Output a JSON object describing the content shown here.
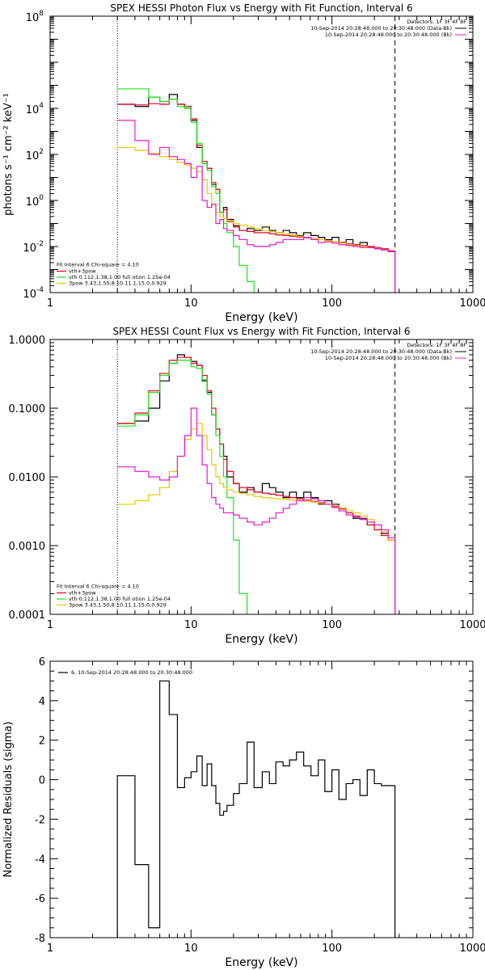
{
  "chart_data": [
    {
      "type": "line",
      "title": "SPEX HESSI Photon Flux vs Energy with Fit Function, Interval 6",
      "xlabel": "Energy (keV)",
      "ylabel": "photons s⁻¹ cm⁻² keV⁻¹",
      "xscale": "log",
      "yscale": "log",
      "xlim": [
        1,
        1000
      ],
      "ylim": [
        0.0001,
        100000000
      ],
      "x_ticks": [
        1,
        10,
        100,
        1000
      ],
      "x_tick_labels": [
        "1",
        "10",
        "100",
        "1000"
      ],
      "y_ticks": [
        0.0001,
        0.01,
        1,
        100,
        10000,
        100000000
      ],
      "y_tick_labels": [
        {
          "base": "10",
          "exp": "-4"
        },
        {
          "base": "10",
          "exp": "-2"
        },
        {
          "base": "10",
          "exp": "0"
        },
        {
          "base": "10",
          "exp": "2"
        },
        {
          "base": "10",
          "exp": "4"
        },
        {
          "base": "10",
          "exp": "8"
        }
      ],
      "grid": false,
      "legend_top_right": [
        "Detectors: 1F 3F 4F 8F",
        "10-Sep-2014 20:28:48.000 to 20:30:48.000 (Data-Bk)",
        "10-Sep-2014 20:28:48.000 to 20:30:48.000 (Bk)"
      ],
      "legend_bottom_left": {
        "header": "Fit Interval  6   Chi-square = 4.10",
        "entries": [
          {
            "label": "vth+3pow",
            "color": "#e8001c"
          },
          {
            "label": "vth 0.112,1.38,1.00  full otion 1.25e-04",
            "color": "#18e818"
          },
          {
            "label": "3pow 3.43,1.50,8.10,11.1,15.0,0.929",
            "color": "#e8c800"
          }
        ]
      },
      "vlines_keV": {
        "dotted": 3.0,
        "dashed": 280
      },
      "series": [
        {
          "color": "#000000",
          "edges": [
            3,
            4,
            5,
            6,
            7,
            8,
            9,
            10,
            11,
            12,
            13,
            14,
            15,
            16,
            17,
            18,
            20,
            22,
            25,
            28,
            32,
            36,
            40,
            45,
            50,
            56,
            63,
            71,
            80,
            89,
            100,
            112,
            126,
            141,
            158,
            178,
            200,
            224,
            251,
            280
          ],
          "values": [
            15000,
            12000,
            30000,
            20000,
            40000,
            15000,
            10000,
            3000,
            200,
            40,
            25,
            5,
            3,
            0.3,
            0.5,
            0.15,
            0.08,
            0.05,
            0.06,
            0.05,
            0.07,
            0.05,
            0.04,
            0.05,
            0.04,
            0.03,
            0.04,
            0.03,
            0.025,
            0.02,
            0.025,
            0.015,
            0.02,
            0.012,
            0.015,
            0.01,
            0.008,
            0.007,
            0.006
          ]
        },
        {
          "color": "#e8001c",
          "edges": [
            3,
            4,
            5,
            6,
            7,
            8,
            9,
            10,
            11,
            12,
            13,
            14,
            15,
            16,
            17,
            18,
            20,
            22,
            25,
            28,
            32,
            36,
            40,
            45,
            50,
            56,
            63,
            71,
            80,
            89,
            100,
            112,
            126,
            141,
            158,
            178,
            200,
            224,
            251,
            280
          ],
          "values": [
            15000,
            14000,
            16000,
            15000,
            25000,
            15000,
            12000,
            3500,
            250,
            50,
            25,
            6,
            3,
            0.3,
            0.4,
            0.12,
            0.07,
            0.05,
            0.045,
            0.04,
            0.04,
            0.036,
            0.032,
            0.03,
            0.028,
            0.026,
            0.024,
            0.022,
            0.02,
            0.018,
            0.016,
            0.015,
            0.013,
            0.012,
            0.011,
            0.01,
            0.009,
            0.008,
            0.0065
          ]
        },
        {
          "color": "#18e818",
          "edges": [
            3,
            4,
            5,
            6,
            7,
            8,
            9,
            10,
            11,
            12,
            13,
            14,
            15,
            16,
            17,
            18,
            20,
            22,
            25,
            28
          ],
          "values": [
            70000,
            70000,
            30000,
            20000,
            25000,
            12000,
            10000,
            2500,
            300,
            40,
            20,
            4,
            2,
            0.3,
            0.1,
            0.04,
            0.01,
            0.0015,
            0.0003
          ]
        },
        {
          "color": "#e8c800",
          "edges": [
            3,
            4,
            5,
            6,
            7,
            8,
            9,
            10,
            11,
            12,
            13,
            14,
            15,
            16,
            17,
            18,
            20,
            22,
            25,
            28,
            32,
            36,
            40,
            45,
            50,
            56,
            63,
            71,
            80,
            89,
            100,
            112,
            126,
            141,
            158,
            178,
            200,
            224,
            251,
            280
          ],
          "values": [
            200,
            150,
            110,
            80,
            60,
            45,
            35,
            25,
            18,
            8,
            2,
            0.6,
            0.3,
            0.2,
            0.16,
            0.13,
            0.1,
            0.085,
            0.07,
            0.06,
            0.05,
            0.045,
            0.04,
            0.035,
            0.032,
            0.028,
            0.025,
            0.022,
            0.02,
            0.018,
            0.016,
            0.014,
            0.012,
            0.011,
            0.01,
            0.009,
            0.008,
            0.007,
            0.006
          ]
        },
        {
          "color": "#e818d0",
          "edges": [
            3,
            4,
            5,
            6,
            7,
            8,
            9,
            10,
            11,
            12,
            13,
            14,
            15,
            16,
            17,
            18,
            20,
            22,
            25,
            28,
            32,
            36,
            40,
            45,
            50,
            56,
            63,
            71,
            80,
            89,
            100,
            112,
            126,
            141,
            158,
            178,
            200,
            224,
            251,
            280
          ],
          "values": [
            3000,
            400,
            100,
            200,
            80,
            60,
            40,
            10,
            30,
            1,
            0.5,
            0.7,
            0.1,
            0.15,
            0.06,
            0.05,
            0.03,
            0.02,
            0.012,
            0.01,
            0.01,
            0.012,
            0.015,
            0.02,
            0.02,
            0.02,
            0.025,
            0.02,
            0.015,
            0.016,
            0.014,
            0.012,
            0.011,
            0.01,
            0.009,
            0.009,
            0.008,
            0.007,
            0.006
          ]
        }
      ]
    },
    {
      "type": "line",
      "title": "SPEX HESSI Count Flux vs Energy with Fit Function, Interval 6",
      "xlabel": "Energy (keV)",
      "ylabel": "",
      "xscale": "log",
      "yscale": "log",
      "xlim": [
        1,
        1000
      ],
      "ylim": [
        0.0001,
        1.0
      ],
      "x_ticks": [
        1,
        10,
        100,
        1000
      ],
      "x_tick_labels": [
        "1",
        "10",
        "100",
        "1000"
      ],
      "y_ticks": [
        0.0001,
        0.001,
        0.01,
        0.1,
        1.0
      ],
      "y_tick_labels": [
        "0.0001",
        "0.0010",
        "0.0100",
        "0.1000",
        "1.0000"
      ],
      "grid": false,
      "legend_top_right": [
        "Detectors: 1F 3F 4F 8F",
        "10-Sep-2014 20:28:48.000 to 20:30:48.000 (Data-Bk)",
        "10-Sep-2014 20:28:48.000 to 20:30:48.000 (Bk)"
      ],
      "legend_bottom_left": {
        "header": "Fit Interval  6   Chi-square = 4.10",
        "entries": [
          {
            "label": "vth+3pow",
            "color": "#e8001c"
          },
          {
            "label": "vth 0.112,1.38,1.00  full otion 1.25e-04",
            "color": "#18e818"
          },
          {
            "label": "3pow 3.43,1.50,8.10,11.1,15.0,0.929",
            "color": "#e8c800"
          }
        ]
      },
      "vlines_keV": {
        "dotted": 3.0,
        "dashed": 280
      },
      "series": [
        {
          "color": "#000000",
          "edges": [
            3,
            4,
            5,
            6,
            7,
            8,
            9,
            10,
            11,
            12,
            13,
            14,
            15,
            16,
            17,
            18,
            20,
            22,
            25,
            28,
            32,
            36,
            40,
            45,
            50,
            56,
            63,
            71,
            80,
            89,
            100,
            112,
            126,
            141,
            158,
            178,
            200,
            224,
            251,
            280
          ],
          "values": [
            0.06,
            0.065,
            0.1,
            0.25,
            0.45,
            0.6,
            0.55,
            0.48,
            0.42,
            0.25,
            0.17,
            0.08,
            0.05,
            0.03,
            0.02,
            0.01,
            0.008,
            0.006,
            0.007,
            0.006,
            0.008,
            0.007,
            0.006,
            0.005,
            0.006,
            0.005,
            0.006,
            0.005,
            0.004,
            0.0045,
            0.004,
            0.0035,
            0.003,
            0.0025,
            0.0025,
            0.002,
            0.002,
            0.0015,
            0.0012
          ]
        },
        {
          "color": "#e8001c",
          "edges": [
            3,
            4,
            5,
            6,
            7,
            8,
            9,
            10,
            11,
            12,
            13,
            14,
            15,
            16,
            17,
            18,
            20,
            22,
            25,
            28,
            32,
            36,
            40,
            45,
            50,
            56,
            63,
            71,
            80,
            89,
            100,
            112,
            126,
            141,
            158,
            178,
            200,
            224,
            251,
            280
          ],
          "values": [
            0.06,
            0.085,
            0.18,
            0.32,
            0.5,
            0.55,
            0.55,
            0.45,
            0.42,
            0.3,
            0.18,
            0.1,
            0.05,
            0.03,
            0.018,
            0.012,
            0.008,
            0.007,
            0.0065,
            0.006,
            0.0058,
            0.0056,
            0.0054,
            0.0052,
            0.005,
            0.0048,
            0.0046,
            0.0044,
            0.0042,
            0.004,
            0.0037,
            0.0034,
            0.003,
            0.0027,
            0.0024,
            0.002,
            0.0017,
            0.0014,
            0.0012
          ]
        },
        {
          "color": "#18e818",
          "edges": [
            3,
            4,
            5,
            6,
            7,
            8,
            9,
            10,
            11,
            12,
            13,
            14,
            15,
            16,
            17,
            18,
            20,
            22,
            25,
            28
          ],
          "values": [
            0.055,
            0.08,
            0.17,
            0.3,
            0.45,
            0.5,
            0.5,
            0.4,
            0.38,
            0.26,
            0.16,
            0.08,
            0.04,
            0.02,
            0.01,
            0.005,
            0.0012,
            0.0002,
            5e-05
          ]
        },
        {
          "color": "#e8c800",
          "edges": [
            3,
            4,
            5,
            6,
            7,
            8,
            9,
            10,
            11,
            12,
            13,
            14,
            15,
            16,
            17,
            18,
            20,
            22,
            25,
            28,
            32,
            36,
            40,
            45,
            50,
            56,
            63,
            71,
            80,
            89,
            100,
            112,
            126,
            141,
            158,
            178,
            200,
            224,
            251,
            280
          ],
          "values": [
            0.004,
            0.0045,
            0.0055,
            0.007,
            0.012,
            0.02,
            0.035,
            0.05,
            0.06,
            0.04,
            0.025,
            0.015,
            0.01,
            0.008,
            0.007,
            0.0065,
            0.006,
            0.0058,
            0.0055,
            0.0052,
            0.005,
            0.0049,
            0.0048,
            0.0047,
            0.0046,
            0.0045,
            0.0044,
            0.0043,
            0.0041,
            0.004,
            0.0038,
            0.0035,
            0.0032,
            0.003,
            0.0027,
            0.0024,
            0.002,
            0.0016,
            0.0012
          ]
        },
        {
          "color": "#e818d0",
          "edges": [
            3,
            4,
            5,
            6,
            7,
            8,
            9,
            10,
            11,
            12,
            13,
            14,
            15,
            16,
            17,
            18,
            20,
            22,
            25,
            28,
            32,
            36,
            40,
            45,
            50,
            56,
            63,
            71,
            80,
            89,
            100,
            112,
            126,
            141,
            158,
            178,
            200,
            224,
            251,
            280
          ],
          "values": [
            0.014,
            0.012,
            0.01,
            0.009,
            0.01,
            0.02,
            0.04,
            0.1,
            0.04,
            0.015,
            0.008,
            0.005,
            0.004,
            0.0035,
            0.003,
            0.003,
            0.0028,
            0.0025,
            0.0022,
            0.002,
            0.0022,
            0.0025,
            0.003,
            0.0035,
            0.004,
            0.0045,
            0.005,
            0.0048,
            0.0045,
            0.004,
            0.0036,
            0.0032,
            0.0028,
            0.0026,
            0.0024,
            0.0022,
            0.002,
            0.0017,
            0.0013
          ]
        }
      ]
    },
    {
      "type": "line",
      "title": "",
      "xlabel": "Energy (keV)",
      "ylabel": "Normalized Residuals (sigma)",
      "xscale": "log",
      "yscale": "linear",
      "xlim": [
        1,
        1000
      ],
      "ylim": [
        -8,
        6
      ],
      "x_ticks": [
        1,
        10,
        100,
        1000
      ],
      "x_tick_labels": [
        "1",
        "10",
        "100",
        "1000"
      ],
      "y_ticks": [
        -8,
        -6,
        -4,
        -2,
        0,
        2,
        4,
        6
      ],
      "y_tick_labels": [
        "-8",
        "-6",
        "-4",
        "-2",
        "0",
        "2",
        "4",
        "6"
      ],
      "grid": false,
      "legend_top_left": "6, 10-Sep-2014 20:28:48.000 to 20:30:48.000",
      "series": [
        {
          "color": "#000000",
          "edges": [
            3,
            4,
            5,
            6,
            7,
            8,
            9,
            10,
            11,
            12,
            13,
            14,
            15,
            16,
            17,
            18,
            20,
            22,
            25,
            28,
            32,
            36,
            40,
            45,
            50,
            56,
            63,
            71,
            80,
            89,
            100,
            112,
            126,
            141,
            158,
            178,
            200,
            224,
            251,
            280
          ],
          "values": [
            0.2,
            -4.3,
            -7.5,
            5.0,
            3.3,
            -0.4,
            0.1,
            0.4,
            1.2,
            -0.3,
            0.8,
            -0.3,
            -1.2,
            -1.8,
            -1.6,
            -1.3,
            -0.7,
            -0.2,
            1.9,
            -0.4,
            0.4,
            -0.2,
            0.9,
            0.7,
            1.0,
            1.4,
            0.7,
            0.2,
            1.0,
            -0.6,
            0.5,
            -1.0,
            -0.2,
            0.0,
            -0.8,
            0.5,
            -0.2,
            -0.3,
            -0.3
          ]
        }
      ]
    }
  ]
}
